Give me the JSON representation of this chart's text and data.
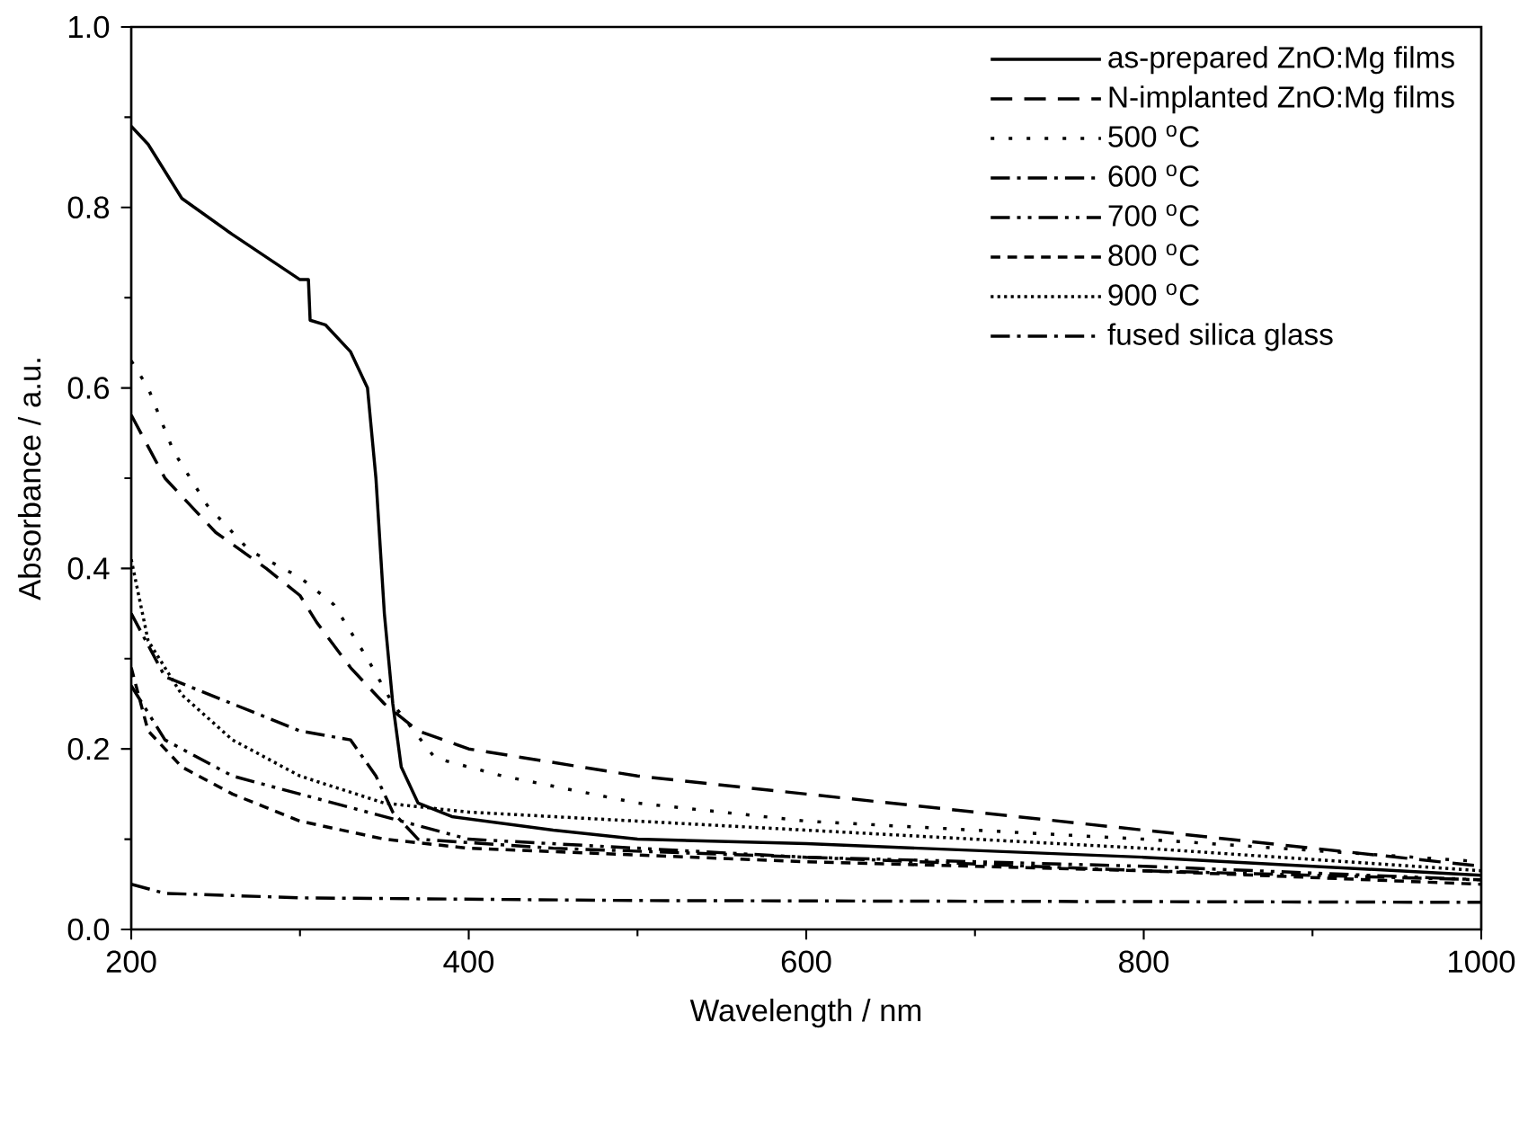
{
  "chart_data": {
    "type": "line",
    "xlabel": "Wavelength / nm",
    "ylabel": "Absorbance / a.u.",
    "xlim": [
      200,
      1000
    ],
    "ylim": [
      0.0,
      1.0
    ],
    "xticks": [
      200,
      400,
      600,
      800,
      1000
    ],
    "yticks": [
      {
        "value": 0.0,
        "label": "0.0"
      },
      {
        "value": 0.2,
        "label": "0.2"
      },
      {
        "value": 0.4,
        "label": "0.4"
      },
      {
        "value": 0.6,
        "label": "0.6"
      },
      {
        "value": 0.8,
        "label": "0.8"
      },
      {
        "value": 1.0,
        "label": "1.0"
      }
    ],
    "grid": false,
    "legend": "top right",
    "marker": "none",
    "series": [
      {
        "name": "as-prepared ZnO:Mg films",
        "color": "#000000",
        "line_style": "solid",
        "x": [
          200,
          210,
          230,
          260,
          300,
          305,
          306,
          315,
          330,
          340,
          345,
          350,
          355,
          360,
          370,
          390,
          450,
          500,
          600,
          800,
          1000
        ],
        "values": [
          0.89,
          0.87,
          0.81,
          0.77,
          0.72,
          0.72,
          0.675,
          0.67,
          0.64,
          0.6,
          0.5,
          0.35,
          0.25,
          0.18,
          0.14,
          0.125,
          0.11,
          0.1,
          0.095,
          0.08,
          0.06
        ]
      },
      {
        "name": "N-implanted ZnO:Mg films",
        "color": "#000000",
        "line_style": "dashed",
        "x": [
          200,
          220,
          250,
          280,
          300,
          310,
          330,
          350,
          370,
          400,
          500,
          600,
          800,
          1000
        ],
        "values": [
          0.57,
          0.5,
          0.44,
          0.4,
          0.37,
          0.34,
          0.29,
          0.25,
          0.22,
          0.2,
          0.17,
          0.15,
          0.11,
          0.07
        ]
      },
      {
        "name": "500 $^{o}$C",
        "color": "#000000",
        "line_style": "loosely dotted",
        "x": [
          200,
          210,
          225,
          245,
          270,
          300,
          320,
          340,
          355,
          380,
          420,
          500,
          600,
          800,
          1000
        ],
        "values": [
          0.63,
          0.6,
          0.53,
          0.47,
          0.42,
          0.39,
          0.36,
          0.3,
          0.25,
          0.19,
          0.17,
          0.14,
          0.12,
          0.1,
          0.075
        ]
      },
      {
        "name": "600 $^{o}$C",
        "color": "#000000",
        "line_style": "dashdot",
        "x": [
          200,
          220,
          260,
          300,
          330,
          345,
          355,
          370,
          450,
          600,
          800,
          1000
        ],
        "values": [
          0.35,
          0.28,
          0.25,
          0.22,
          0.21,
          0.17,
          0.13,
          0.1,
          0.09,
          0.08,
          0.065,
          0.055
        ]
      },
      {
        "name": "700 $^{o}$C",
        "color": "#000000",
        "line_style": "dashdotdot",
        "x": [
          200,
          220,
          260,
          300,
          340,
          400,
          600,
          800,
          1000
        ],
        "values": [
          0.27,
          0.21,
          0.17,
          0.15,
          0.13,
          0.1,
          0.08,
          0.07,
          0.055
        ]
      },
      {
        "name": "800 $^{o}$C",
        "color": "#000000",
        "line_style": "short dashed",
        "x": [
          200,
          210,
          230,
          260,
          300,
          350,
          400,
          600,
          800,
          1000
        ],
        "values": [
          0.29,
          0.22,
          0.18,
          0.15,
          0.12,
          0.1,
          0.09,
          0.075,
          0.065,
          0.05
        ]
      },
      {
        "name": "900 $^{o}$C",
        "color": "#000000",
        "line_style": "dotted",
        "x": [
          200,
          210,
          230,
          260,
          300,
          350,
          400,
          500,
          600,
          800,
          1000
        ],
        "values": [
          0.41,
          0.32,
          0.26,
          0.21,
          0.17,
          0.14,
          0.13,
          0.12,
          0.11,
          0.09,
          0.065
        ]
      },
      {
        "name": "fused silica glass",
        "color": "#000000",
        "line_style": "dashdot",
        "x": [
          200,
          220,
          300,
          500,
          1000
        ],
        "values": [
          0.05,
          0.04,
          0.035,
          0.032,
          0.03
        ]
      }
    ]
  }
}
